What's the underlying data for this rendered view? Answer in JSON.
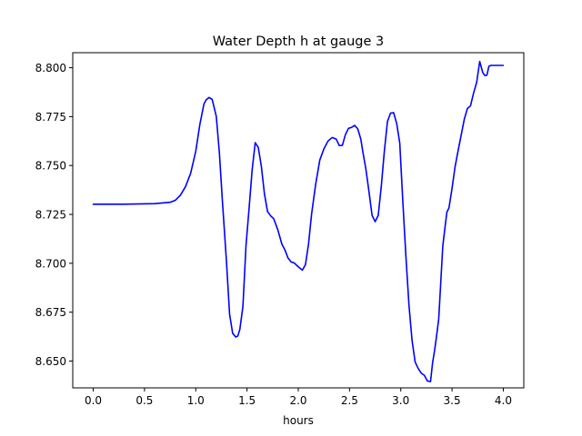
{
  "chart_data": {
    "type": "line",
    "title": "Water Depth h at gauge 3",
    "xlabel": "hours",
    "ylabel": "",
    "xlim": [
      -0.2,
      4.2
    ],
    "ylim": [
      8.6363,
      8.8077
    ],
    "xticks": [
      0.0,
      0.5,
      1.0,
      1.5,
      2.0,
      2.5,
      3.0,
      3.5,
      4.0
    ],
    "xtick_labels": [
      "0.0",
      "0.5",
      "1.0",
      "1.5",
      "2.0",
      "2.5",
      "3.0",
      "3.5",
      "4.0"
    ],
    "yticks": [
      8.65,
      8.675,
      8.7,
      8.725,
      8.75,
      8.775,
      8.8
    ],
    "ytick_labels": [
      "8.650",
      "8.675",
      "8.700",
      "8.725",
      "8.750",
      "8.775",
      "8.800"
    ],
    "grid": false,
    "legend": "none",
    "series": [
      {
        "color": "#0000ff",
        "x": [
          0.0,
          0.3,
          0.6,
          0.75,
          0.8,
          0.85,
          0.9,
          0.95,
          1.0,
          1.04,
          1.08,
          1.1,
          1.13,
          1.16,
          1.2,
          1.23,
          1.26,
          1.3,
          1.33,
          1.36,
          1.39,
          1.41,
          1.43,
          1.46,
          1.49,
          1.52,
          1.55,
          1.58,
          1.61,
          1.64,
          1.67,
          1.7,
          1.73,
          1.76,
          1.8,
          1.84,
          1.87,
          1.9,
          1.93,
          1.96,
          2.0,
          2.04,
          2.07,
          2.1,
          2.13,
          2.17,
          2.21,
          2.25,
          2.29,
          2.33,
          2.37,
          2.4,
          2.43,
          2.46,
          2.49,
          2.52,
          2.55,
          2.58,
          2.61,
          2.63,
          2.66,
          2.69,
          2.72,
          2.75,
          2.78,
          2.81,
          2.84,
          2.87,
          2.9,
          2.93,
          2.96,
          2.99,
          3.02,
          3.05,
          3.08,
          3.11,
          3.14,
          3.17,
          3.2,
          3.23,
          3.26,
          3.29,
          3.31,
          3.33,
          3.35,
          3.37,
          3.39,
          3.41,
          3.43,
          3.45,
          3.47,
          3.5,
          3.53,
          3.56,
          3.59,
          3.62,
          3.65,
          3.68,
          3.71,
          3.74,
          3.77,
          3.8,
          3.82,
          3.84,
          3.86,
          3.88,
          3.9,
          3.92,
          3.94,
          3.96,
          3.98,
          4.0
        ],
        "y": [
          8.7302,
          8.7302,
          8.7305,
          8.7312,
          8.7322,
          8.7348,
          8.7392,
          8.746,
          8.7573,
          8.771,
          8.7815,
          8.7835,
          8.7848,
          8.7838,
          8.7752,
          8.7568,
          8.7318,
          8.7005,
          8.674,
          8.6642,
          8.6623,
          8.6628,
          8.6662,
          8.678,
          8.709,
          8.728,
          8.7477,
          8.7617,
          8.7592,
          8.7495,
          8.7355,
          8.7265,
          8.7243,
          8.7228,
          8.7172,
          8.7098,
          8.7068,
          8.7027,
          8.7007,
          8.7002,
          8.6982,
          8.6965,
          8.6993,
          8.7098,
          8.7252,
          8.7405,
          8.7528,
          8.7585,
          8.7625,
          8.7643,
          8.7635,
          8.7602,
          8.7603,
          8.7658,
          8.769,
          8.7695,
          8.7705,
          8.7688,
          8.7635,
          8.757,
          8.748,
          8.7365,
          8.7245,
          8.7213,
          8.7245,
          8.7395,
          8.7575,
          8.7725,
          8.7768,
          8.777,
          8.7715,
          8.7615,
          8.7315,
          8.7035,
          8.6785,
          8.6605,
          8.6495,
          8.6462,
          8.6438,
          8.6427,
          8.6398,
          8.6395,
          8.649,
          8.6555,
          8.6632,
          8.6715,
          8.6903,
          8.709,
          8.7178,
          8.7262,
          8.7283,
          8.7383,
          8.7495,
          8.7578,
          8.7658,
          8.7738,
          8.7792,
          8.7805,
          8.787,
          8.7925,
          8.8032,
          8.7975,
          8.796,
          8.7962,
          8.8008,
          8.8012,
          8.8012,
          8.8012,
          8.8012,
          8.8012,
          8.8012,
          8.8012
        ]
      }
    ]
  }
}
